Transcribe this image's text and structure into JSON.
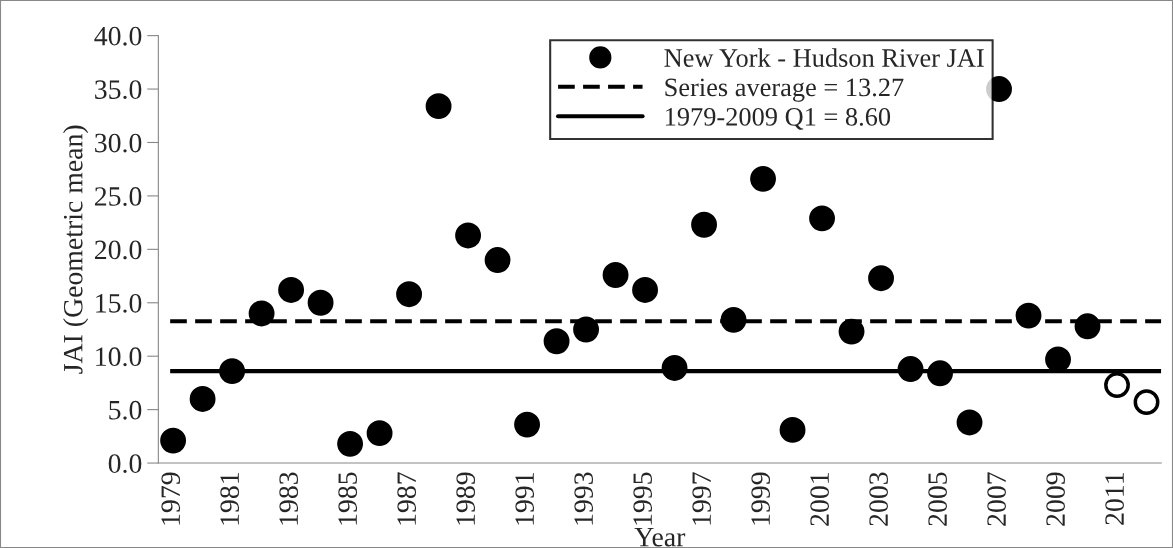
{
  "chart_data": {
    "type": "scatter",
    "xlabel": "Year",
    "ylabel": "JAI (Geometric mean)",
    "categories": [
      "1979",
      null,
      "1981",
      null,
      "1983",
      null,
      "1985",
      null,
      "1987",
      null,
      "1989",
      null,
      "1991",
      null,
      "1993",
      null,
      "1995",
      null,
      "1997",
      null,
      "1999",
      null,
      "2001",
      null,
      "2003",
      null,
      "2005",
      null,
      "2007",
      null,
      "2009",
      null,
      "2011",
      null
    ],
    "series": [
      {
        "name": "New York - Hudson River JAI",
        "color": "#000000",
        "values": [
          2.1,
          6.0,
          8.6,
          14.0,
          16.2,
          15.0,
          1.8,
          2.8,
          15.8,
          33.4,
          21.3,
          19.0,
          3.6,
          11.4,
          12.5,
          17.6,
          16.2,
          8.9,
          22.3,
          13.4,
          26.6,
          3.1,
          22.9,
          12.3,
          17.3,
          8.8,
          8.4,
          3.8,
          35.0,
          13.8,
          9.7,
          12.8,
          null,
          null
        ]
      },
      {
        "color": "#ffffff",
        "values": [
          null,
          null,
          null,
          null,
          null,
          null,
          null,
          null,
          null,
          null,
          null,
          null,
          null,
          null,
          null,
          null,
          null,
          null,
          null,
          null,
          null,
          null,
          null,
          null,
          null,
          null,
          null,
          null,
          null,
          null,
          null,
          null,
          7.3,
          5.7
        ]
      }
    ],
    "ref_lines": [
      {
        "axis": "y",
        "value": 13.27,
        "label": "Series average = 13.27",
        "line_style": "dashed",
        "color": "#000000"
      },
      {
        "axis": "y",
        "value": 8.6,
        "label": "1979-2009 Q1 = 8.60",
        "line_style": "solid",
        "color": "#000000"
      }
    ],
    "ylim": [
      0,
      40
    ],
    "yticks": [
      {
        "value": 0,
        "label": "0.0"
      },
      {
        "value": 5,
        "label": "5.0"
      },
      {
        "value": 10,
        "label": "10.0"
      },
      {
        "value": 15,
        "label": "15.0"
      },
      {
        "value": 20,
        "label": "20.0"
      },
      {
        "value": 25,
        "label": "25.0"
      },
      {
        "value": 30,
        "label": "30.0"
      },
      {
        "value": 35,
        "label": "35.0"
      },
      {
        "value": 40,
        "label": "40.0"
      }
    ],
    "marker": "circle",
    "legend": "top right",
    "grid": false
  }
}
